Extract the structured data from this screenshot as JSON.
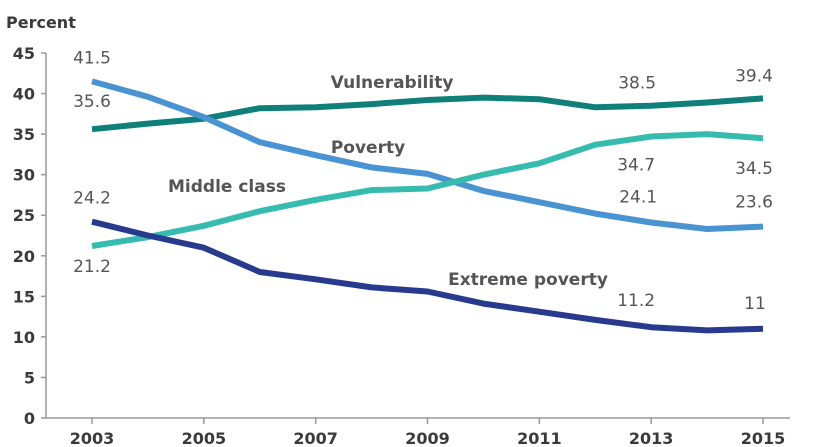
{
  "chart_data": {
    "type": "line",
    "ylabel": "Percent",
    "ylim": [
      0,
      45
    ],
    "yticks": [
      0,
      5,
      10,
      15,
      20,
      25,
      30,
      35,
      40,
      45
    ],
    "x": [
      2003,
      2004,
      2005,
      2006,
      2007,
      2008,
      2009,
      2010,
      2011,
      2012,
      2013,
      2014,
      2015
    ],
    "xticks": [
      "2003",
      "2005",
      "2007",
      "2009",
      "2011",
      "2013",
      "2015"
    ],
    "series": [
      {
        "name": "Vulnerability",
        "color": "#0f7f7a",
        "values": [
          35.6,
          36.3,
          36.9,
          38.2,
          38.3,
          38.7,
          39.2,
          39.5,
          39.3,
          38.3,
          38.5,
          38.9,
          39.4
        ]
      },
      {
        "name": "Poverty",
        "color": "#4a93d2",
        "values": [
          41.5,
          39.6,
          37.1,
          34.0,
          32.4,
          30.9,
          30.1,
          28.0,
          26.6,
          25.2,
          24.1,
          23.3,
          23.6
        ]
      },
      {
        "name": "Middle class",
        "color": "#36bcae",
        "values": [
          21.2,
          22.3,
          23.7,
          25.5,
          26.9,
          28.1,
          28.3,
          30.0,
          31.4,
          33.7,
          34.7,
          35.0,
          34.5
        ]
      },
      {
        "name": "Extreme poverty",
        "color": "#283a8e",
        "values": [
          24.2,
          22.5,
          21.0,
          18.0,
          17.1,
          16.1,
          15.6,
          14.1,
          13.1,
          12.1,
          11.2,
          10.8,
          11.0
        ]
      }
    ],
    "data_labels": [
      {
        "series": "Poverty",
        "x": 2003,
        "text": "41.5"
      },
      {
        "series": "Vulnerability",
        "x": 2003,
        "text": "35.6"
      },
      {
        "series": "Extreme poverty",
        "x": 2003,
        "text": "24.2"
      },
      {
        "series": "Middle class",
        "x": 2003,
        "text": "21.2"
      },
      {
        "series": "Vulnerability",
        "x": 2013,
        "text": "38.5"
      },
      {
        "series": "Vulnerability",
        "x": 2015,
        "text": "39.4"
      },
      {
        "series": "Middle class",
        "x": 2013,
        "text": "34.7"
      },
      {
        "series": "Middle class",
        "x": 2015,
        "text": "34.5"
      },
      {
        "series": "Poverty",
        "x": 2013,
        "text": "24.1"
      },
      {
        "series": "Poverty",
        "x": 2015,
        "text": "23.6"
      },
      {
        "series": "Extreme poverty",
        "x": 2013,
        "text": "11.2"
      },
      {
        "series": "Extreme poverty",
        "x": 2015,
        "text": "11"
      }
    ],
    "grid": false
  }
}
